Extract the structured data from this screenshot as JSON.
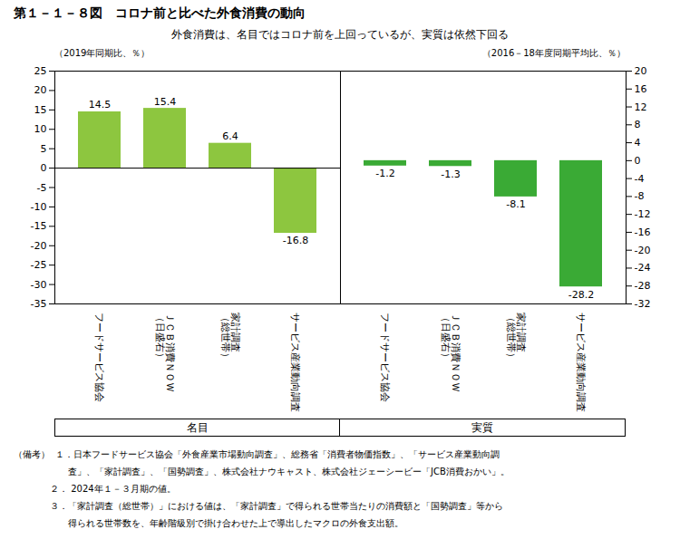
{
  "chart_data": {
    "type": "bar",
    "title": "第１－１－８図　コロナ前と比べた外食消費の動向",
    "subtitle": "外食消費は、名目ではコロナ前を上回っているが、実質は依然下回る",
    "ylabel": "（2019年同期比、％）",
    "y2label": "（2016－18年度同期平均比、％）",
    "categories": [
      "フードサービス協会",
      "ＪＣＢ消費ＮＯＷ\n（日盛右）",
      "家計調査\n（総世帯）",
      "サービス産業動向調査"
    ],
    "series": [
      {
        "name": "名目",
        "color": "#8DC63F",
        "values": [
          14.5,
          15.4,
          6.4,
          -16.8
        ]
      },
      {
        "name": "実質",
        "color": "#3aaa35",
        "axis": "y2",
        "values": [
          -1.2,
          -1.3,
          -8.1,
          -28.2
        ]
      }
    ],
    "ylim": [
      -35,
      25
    ],
    "yticks": [
      -35,
      -30,
      -25,
      -20,
      -15,
      -10,
      -5,
      0,
      5,
      10,
      15,
      20,
      25
    ],
    "y2lim": [
      -32,
      20
    ],
    "y2ticks": [
      -32,
      -28,
      -24,
      -20,
      -16,
      -12,
      -8,
      -4,
      0,
      4,
      8,
      12,
      16,
      20
    ],
    "data_labels": true,
    "notes": [
      "（備考）  １．日本フードサービス協会「外食産業市場動向調査」、総務省「消費者物価指数」、「サービス産業動向調",
      "　　　　　　査」、「家計調査」、「国勢調査」、株式会社ナウキャスト、株式会社ジェーシービー「JCB消費おかい」。",
      "　　　　２． 2024年１－３月期の値。",
      "　　　　３．「家計調査（総世帯）」における値は、「家計調査」で得られる世帯当たりの消費額と「国勢調査」等から",
      "　　　　　　得られる世帯数を、年齢階級別で掛け合わせた上で導出したマクロの外食支出額。"
    ]
  }
}
